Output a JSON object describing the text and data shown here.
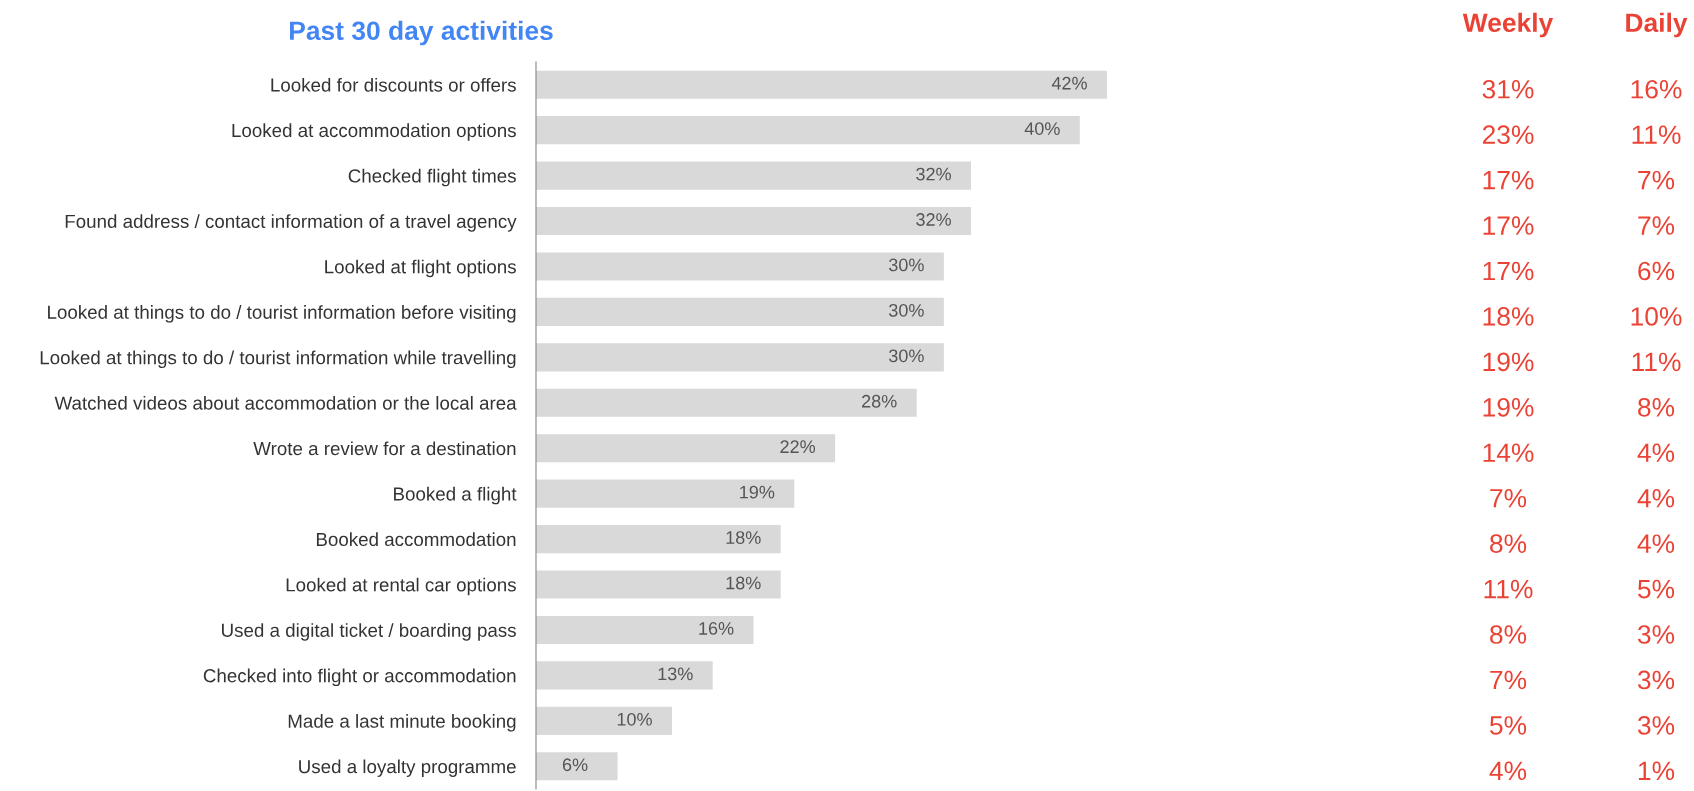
{
  "chart_data": [
    {
      "type": "bar",
      "orientation": "horizontal",
      "title": "Past 30 day activities",
      "categories": [
        "Looked for discounts or offers",
        "Looked at accommodation options",
        "Checked flight times",
        "Found address / contact information of a travel agency",
        "Looked at flight options",
        "Looked at things to do / tourist information before visiting",
        "Looked at things to do / tourist information while travelling",
        "Watched videos about accommodation or the local area",
        "Wrote a review for a destination",
        "Booked a flight",
        "Booked accommodation",
        "Looked at rental car options",
        "Used a digital ticket / boarding pass",
        "Checked into flight or accommodation",
        "Made a last minute booking",
        "Used a loyalty programme"
      ],
      "values": [
        42,
        40,
        32,
        32,
        30,
        30,
        30,
        28,
        22,
        19,
        18,
        18,
        16,
        13,
        10,
        6
      ],
      "value_labels": [
        "42%",
        "40%",
        "32%",
        "32%",
        "30%",
        "30%",
        "30%",
        "28%",
        "22%",
        "19%",
        "18%",
        "18%",
        "16%",
        "13%",
        "10%",
        "6%"
      ],
      "color": "#d9d9d9",
      "tick_labels": "y"
    },
    {
      "type": "other",
      "title": "Weekly",
      "value_labels": [
        "31%",
        "23%",
        "17%",
        "17%",
        "17%",
        "18%",
        "19%",
        "19%",
        "14%",
        "7%",
        "8%",
        "11%",
        "8%",
        "7%",
        "5%",
        "4%"
      ],
      "color": "#ea4335"
    },
    {
      "type": "other",
      "title": "Daily",
      "value_labels": [
        "16%",
        "11%",
        "7%",
        "7%",
        "6%",
        "10%",
        "11%",
        "8%",
        "4%",
        "4%",
        "4%",
        "5%",
        "3%",
        "3%",
        "3%",
        "1%"
      ],
      "color": "#ea4335"
    }
  ]
}
